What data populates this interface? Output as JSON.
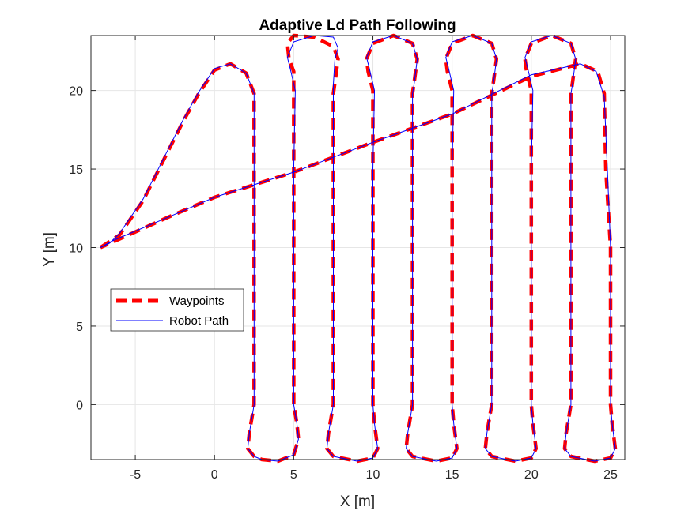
{
  "chart_data": {
    "type": "line",
    "title": "Adaptive Ld Path Following",
    "xlabel": "X [m]",
    "ylabel": "Y [m]",
    "xlim": [
      -7.8,
      25.9
    ],
    "ylim": [
      -3.5,
      23.5
    ],
    "xticks": [
      -5,
      0,
      5,
      10,
      15,
      20,
      25
    ],
    "yticks": [
      0,
      5,
      10,
      15,
      20
    ],
    "xtick_labels": [
      "-5",
      "0",
      "5",
      "10",
      "15",
      "20",
      "25"
    ],
    "ytick_labels": [
      "0",
      "5",
      "10",
      "15",
      "20"
    ],
    "grid": true,
    "legend_position": "middle-left",
    "legend": [
      "Waypoints",
      "Robot Path"
    ],
    "colors": {
      "waypoints": "#ff0000",
      "robot_path": "#0000ff",
      "grid": "#e6e6e6",
      "axes": "#262626"
    },
    "series": [
      {
        "name": "Waypoints",
        "style": "dashed",
        "x": [
          -7.2,
          -6,
          -4.5,
          -3,
          -2,
          -1,
          0,
          1,
          2,
          2.5,
          2.5,
          2.5,
          2.2,
          2.1,
          2.5,
          3,
          4,
          5,
          5.3,
          5.2,
          5,
          5,
          5,
          5,
          5,
          5,
          4.7,
          4.6,
          5,
          6.3,
          7.5,
          7.8,
          7.6,
          7.5,
          7.5,
          7.5,
          7.2,
          7.1,
          7.5,
          9,
          10,
          10.3,
          10.1,
          10,
          10,
          10,
          10,
          10,
          9.7,
          9.6,
          10,
          11.3,
          12.5,
          12.8,
          12.6,
          12.5,
          12.5,
          12.5,
          12.2,
          12.1,
          12.5,
          14,
          15,
          15.3,
          15.1,
          15,
          15,
          15,
          15,
          15,
          14.7,
          14.6,
          15,
          16.3,
          17.5,
          17.8,
          17.6,
          17.5,
          17.5,
          17.5,
          17.2,
          17.1,
          17.5,
          19,
          20,
          20.3,
          20.1,
          20,
          20,
          20,
          20,
          20,
          19.7,
          19.6,
          20,
          21.3,
          22.5,
          22.8,
          22.6,
          22.5,
          22.5,
          22.5,
          22.2,
          22.1,
          22.5,
          24,
          25,
          25.3,
          25.1,
          25,
          25,
          25,
          24.7,
          24.6,
          24.2,
          23.1,
          20,
          15,
          10,
          5,
          0,
          -3,
          -7.2
        ],
        "y": [
          10,
          10.8,
          13,
          16,
          18,
          19.8,
          21.3,
          21.7,
          21.1,
          19.8,
          10,
          0,
          -1.8,
          -2.8,
          -3.3,
          -3.5,
          -3.6,
          -3.2,
          -2.2,
          -1.2,
          0,
          5,
          10,
          15,
          20,
          21.2,
          22,
          23,
          23.5,
          23.4,
          22.8,
          22,
          20.5,
          19.8,
          10,
          0,
          -1.8,
          -2.8,
          -3.3,
          -3.6,
          -3.4,
          -2.8,
          -1.2,
          0,
          5,
          10,
          15,
          20,
          21.2,
          22,
          23,
          23.5,
          23,
          22,
          20.5,
          19.8,
          10,
          0,
          -1.8,
          -2.8,
          -3.3,
          -3.6,
          -3.4,
          -2.8,
          -1.2,
          0,
          5,
          10,
          15,
          20,
          21.2,
          22,
          23,
          23.5,
          23,
          22,
          20.5,
          19.8,
          10,
          0,
          -1.8,
          -2.8,
          -3.3,
          -3.6,
          -3.4,
          -2.8,
          -1.2,
          0,
          5,
          10,
          15,
          20,
          21.2,
          22,
          23,
          23.5,
          23,
          22,
          20.5,
          19.8,
          10,
          0,
          -1.8,
          -2.8,
          -3.3,
          -3.6,
          -3.4,
          -2.8,
          -1.2,
          0,
          5,
          10,
          15,
          19.8,
          21.2,
          21.7,
          20.9,
          18.5,
          16.7,
          14.8,
          13.2,
          11.9,
          10
        ]
      },
      {
        "name": "Robot Path",
        "style": "solid",
        "x": [
          -7.2,
          -6.6,
          -6,
          -4.5,
          -3,
          -2,
          -1,
          0,
          1,
          2,
          2.5,
          2.5,
          2.5,
          2.2,
          2.1,
          2.5,
          3,
          4,
          5,
          5.3,
          5.2,
          5,
          5,
          5,
          5,
          5.1,
          4.8,
          4.6,
          5,
          6.3,
          7.5,
          7.8,
          7.6,
          7.5,
          7.5,
          7.5,
          7.2,
          7.1,
          7.5,
          9,
          10,
          10.3,
          10.1,
          10,
          10,
          10,
          10,
          10.1,
          9.8,
          9.6,
          10,
          11.3,
          12.5,
          12.8,
          12.6,
          12.5,
          12.5,
          12.5,
          12.2,
          12.1,
          12.5,
          14,
          15,
          15.3,
          15.1,
          15,
          15,
          15,
          15,
          15.1,
          14.8,
          14.6,
          15,
          16.3,
          17.5,
          17.8,
          17.6,
          17.5,
          17.5,
          17.5,
          17.2,
          17.1,
          17.5,
          19,
          20,
          20.3,
          20.1,
          20,
          20,
          20,
          20,
          20.1,
          19.8,
          19.6,
          20,
          21.3,
          22.5,
          22.8,
          22.6,
          22.5,
          22.5,
          22.5,
          22.2,
          22.1,
          22.5,
          24,
          25,
          25.3,
          25.1,
          25,
          25,
          25,
          24.8,
          24.6,
          24.1,
          23.1,
          20,
          15,
          10,
          5,
          0,
          -3,
          -6.5,
          -7.2
        ],
        "y": [
          10,
          10.3,
          10.9,
          13.1,
          16.1,
          18.1,
          19.9,
          21.4,
          21.7,
          21.1,
          19.8,
          10,
          0,
          -1.8,
          -2.8,
          -3.3,
          -3.5,
          -3.6,
          -3.2,
          -2.2,
          -1.2,
          0,
          5,
          10,
          15,
          20,
          21.3,
          22.1,
          23.1,
          23.5,
          23.4,
          22.7,
          22,
          20.4,
          10,
          0,
          -1.8,
          -2.8,
          -3.3,
          -3.6,
          -3.4,
          -2.8,
          -1.2,
          0,
          5,
          10,
          15,
          20,
          21.3,
          22.1,
          23.1,
          23.5,
          23,
          22,
          20.4,
          19.8,
          10,
          0,
          -1.8,
          -2.8,
          -3.3,
          -3.6,
          -3.4,
          -2.8,
          -1.2,
          0,
          5,
          10,
          15,
          20,
          21.3,
          22.1,
          23.1,
          23.5,
          23,
          22,
          20.4,
          19.8,
          10,
          0,
          -1.8,
          -2.8,
          -3.3,
          -3.6,
          -3.4,
          -2.8,
          -1.2,
          0,
          5,
          10,
          15,
          20,
          21.3,
          22.1,
          23.1,
          23.5,
          23,
          22,
          20.4,
          19.8,
          10,
          0,
          -1.8,
          -2.8,
          -3.3,
          -3.6,
          -3.4,
          -2.8,
          -1.2,
          0,
          5,
          10,
          15,
          19.6,
          21.2,
          21.7,
          21,
          18.5,
          16.7,
          14.8,
          13.2,
          11.9,
          10.4,
          10
        ]
      }
    ]
  }
}
